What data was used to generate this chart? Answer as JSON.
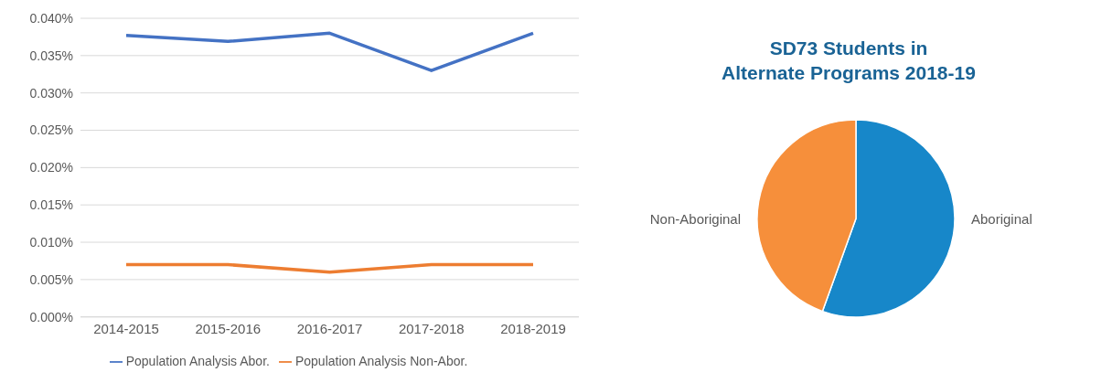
{
  "chart_data": [
    {
      "type": "line",
      "categories": [
        "2014-2015",
        "2015-2016",
        "2016-2017",
        "2017-2018",
        "2018-2019"
      ],
      "series": [
        {
          "name": "Population Analysis Abor.",
          "color": "#4472c4",
          "values": [
            0.0377,
            0.0369,
            0.038,
            0.033,
            0.038
          ]
        },
        {
          "name": "Population Analysis Non-Abor.",
          "color": "#ed7d31",
          "values": [
            0.007,
            0.007,
            0.006,
            0.007,
            0.007
          ]
        }
      ],
      "ylim": [
        0,
        0.04
      ],
      "yticks": [
        {
          "value": 0,
          "label": "0.000%"
        },
        {
          "value": 0.005,
          "label": "0.005%"
        },
        {
          "value": 0.01,
          "label": "0.010%"
        },
        {
          "value": 0.015,
          "label": "0.015%"
        },
        {
          "value": 0.02,
          "label": "0.020%"
        },
        {
          "value": 0.025,
          "label": "0.025%"
        },
        {
          "value": 0.03,
          "label": "0.030%"
        },
        {
          "value": 0.035,
          "label": "0.035%"
        },
        {
          "value": 0.04,
          "label": "0.040%"
        }
      ],
      "grid": "y",
      "legend": "bottom",
      "marker": "none",
      "line_style": "solid"
    },
    {
      "type": "pie",
      "title": "SD73 Students in\nAlternate Programs 2018-19",
      "categories": [
        "Aboriginal",
        "Non-Aboriginal"
      ],
      "values": [
        55.5,
        44.5
      ],
      "colors": [
        "#1787c9",
        "#f68f3b"
      ]
    }
  ]
}
